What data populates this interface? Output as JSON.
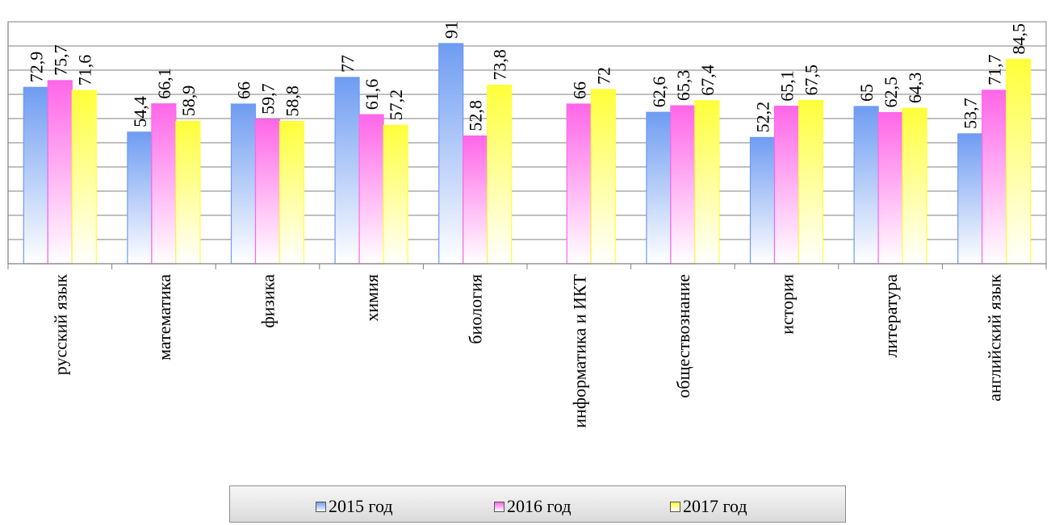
{
  "chart_data": {
    "type": "bar",
    "categories": [
      "русский язык",
      "математика",
      "физика",
      "химия",
      "биология",
      "информатика и ИКТ",
      "обществознание",
      "история",
      "литература",
      "английский язык"
    ],
    "series": [
      {
        "name": "2015 год",
        "values": [
          72.9,
          54.4,
          66,
          77,
          91,
          null,
          62.6,
          52.2,
          65,
          53.7
        ],
        "labels": [
          "72,9",
          "54,4",
          "66",
          "77",
          "91",
          "",
          "62,6",
          "52,2",
          "65",
          "53,7"
        ],
        "color": "#6f9cf2"
      },
      {
        "name": "2016 год",
        "values": [
          75.7,
          66.1,
          59.7,
          61.6,
          52.8,
          66,
          65.3,
          65.1,
          62.5,
          71.7
        ],
        "labels": [
          "75,7",
          "66,1",
          "59,7",
          "61,6",
          "52,8",
          "66",
          "65,3",
          "65,1",
          "62,5",
          "71,7"
        ],
        "color": "#ff66e8"
      },
      {
        "name": "2017 год",
        "values": [
          71.6,
          58.9,
          58.8,
          57.2,
          73.8,
          72,
          67.4,
          67.5,
          64.3,
          84.5
        ],
        "labels": [
          "71,6",
          "58,9",
          "58,8",
          "57,2",
          "73,8",
          "72",
          "67,4",
          "67,5",
          "64,3",
          "84,5"
        ],
        "color": "#ffff3a"
      }
    ],
    "ylim": [
      0,
      100
    ],
    "grid": true,
    "legend_position": "bottom"
  }
}
